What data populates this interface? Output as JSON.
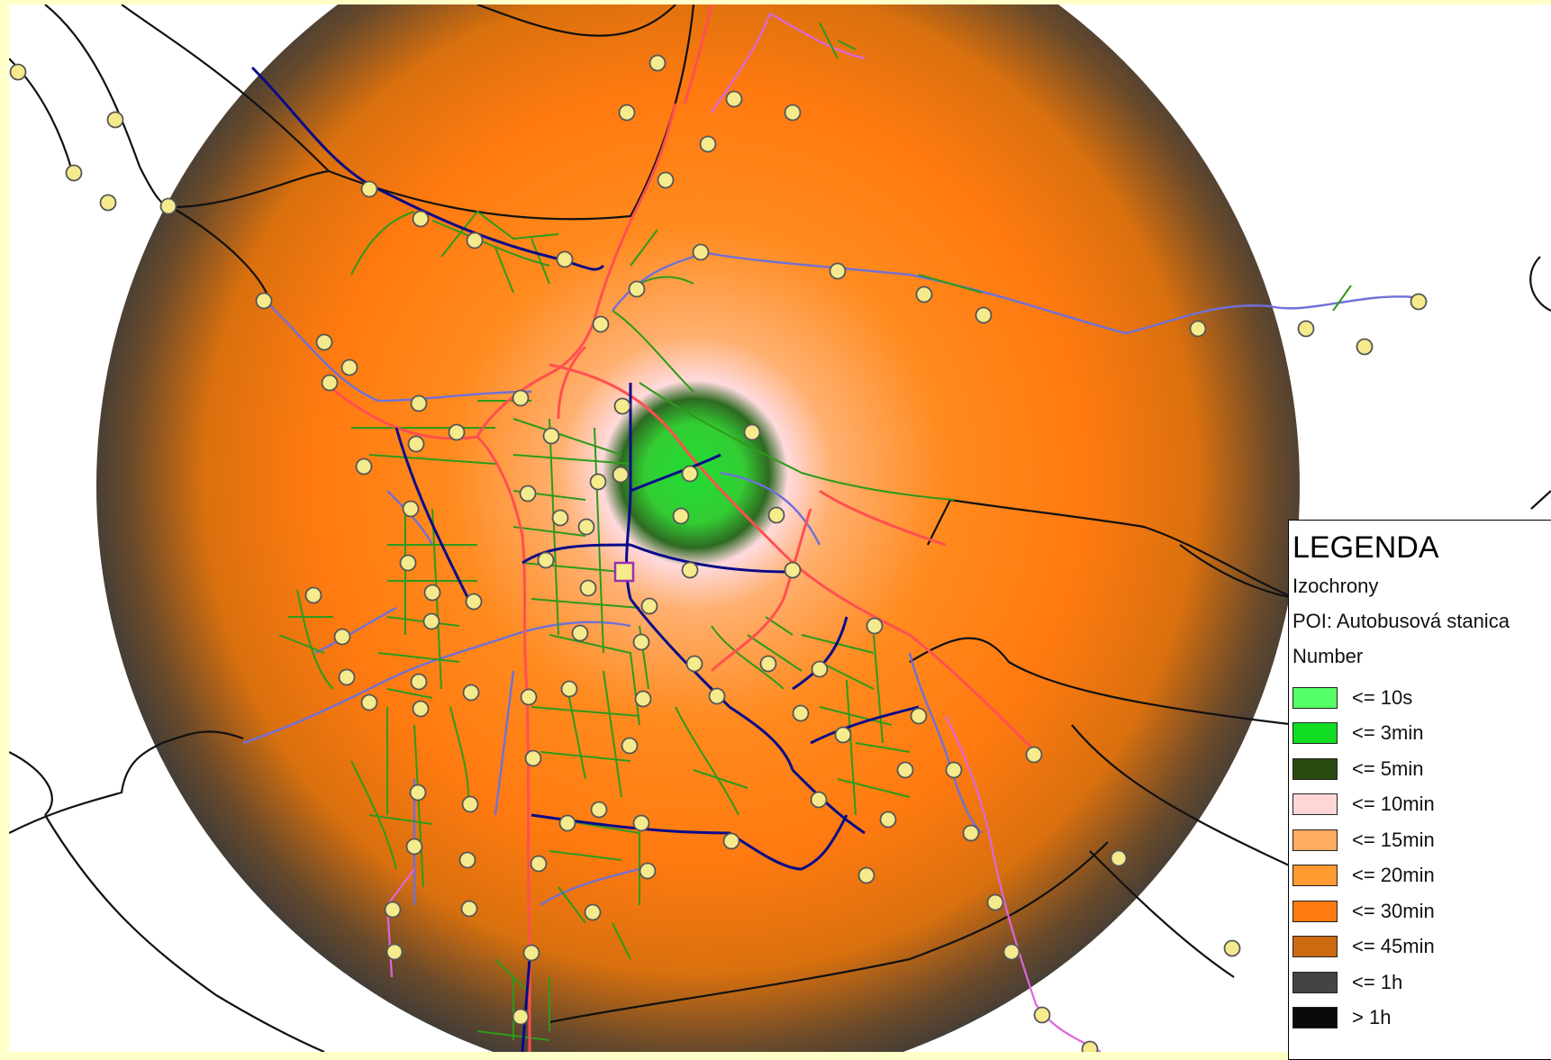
{
  "map": {
    "isochrone_colors": {
      "center": "#33dd33",
      "near": "#ffdfe0",
      "mid": "#ff8a1e",
      "outer": "#d9700e",
      "edge": "#3a3a3a"
    },
    "road_colors": {
      "primary": "#ff5050",
      "secondary": "#0a0a8a",
      "tertiary": "#7070d8",
      "residential": "#2e9a1a",
      "track": "#dd66dd",
      "other": "#111111"
    },
    "poi_marker_color": "#f5ea8c",
    "origin_marker": "square-marker"
  },
  "legend": {
    "title": "LEGENDA",
    "layer": "Izochrony",
    "poi": "POI: Autobusová stanica",
    "field": "Number",
    "items": [
      {
        "label": "<= 10s",
        "color": "#55ff66"
      },
      {
        "label": "<= 3min",
        "color": "#11dd22"
      },
      {
        "label": "<= 5min",
        "color": "#2a4a10"
      },
      {
        "label": "<= 10min",
        "color": "#ffd6d6"
      },
      {
        "label": "<= 15min",
        "color": "#ffab60"
      },
      {
        "label": "<= 20min",
        "color": "#ff9a30"
      },
      {
        "label": "<= 30min",
        "color": "#ff7a10"
      },
      {
        "label": "<= 45min",
        "color": "#cc6a10"
      },
      {
        "label": "<= 1h",
        "color": "#444444"
      },
      {
        "label": "> 1h",
        "color": "#0a0a0a"
      }
    ]
  }
}
